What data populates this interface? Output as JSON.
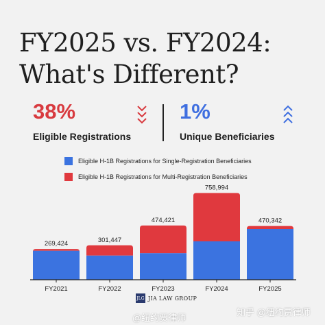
{
  "title_line1": "FY2025 vs. FY2024:",
  "title_line2": "What's Different?",
  "stats": [
    {
      "value": "38%",
      "label": "Eligible Registrations",
      "color": "#d83a3f",
      "direction": "down"
    },
    {
      "value": "1%",
      "label": "Unique Beneficiaries",
      "color": "#3f6fe0",
      "direction": "up"
    }
  ],
  "colors": {
    "single": "#3b73e0",
    "multi": "#e0393e",
    "text": "#1f1f1f",
    "axis": "#222222"
  },
  "legend": [
    {
      "label": "Eligible H-1B Registrations for Single-Registration Beneficiaries"
    },
    {
      "label": "Eligible H-1B Registrations for Multi-Registration Beneficiaries"
    }
  ],
  "chart_data": {
    "type": "bar",
    "stacked": true,
    "categories": [
      "FY2021",
      "FY2022",
      "FY2023",
      "FY2024",
      "FY2025"
    ],
    "series": [
      {
        "name": "Eligible H-1B Registrations for Single-Registration Beneficiaries",
        "values": [
          254000,
          212000,
          233000,
          336000,
          444000
        ]
      },
      {
        "name": "Eligible H-1B Registrations for Multi-Registration Beneficiaries",
        "values": [
          15424,
          89447,
          241421,
          422994,
          26342
        ]
      }
    ],
    "totals": [
      269424,
      301447,
      474421,
      758994,
      470342
    ],
    "total_labels": [
      "269,424",
      "301,447",
      "474,421",
      "758,994",
      "470,342"
    ],
    "ylim": [
      0,
      780000
    ],
    "grid": false,
    "legend_position": "top"
  },
  "footer": {
    "logo_mark": "JLG",
    "logo_text": "JIA LAW GROUP"
  },
  "watermarks": {
    "left": "@纽约贾律师",
    "right": "知乎 @纽约贾律师"
  }
}
